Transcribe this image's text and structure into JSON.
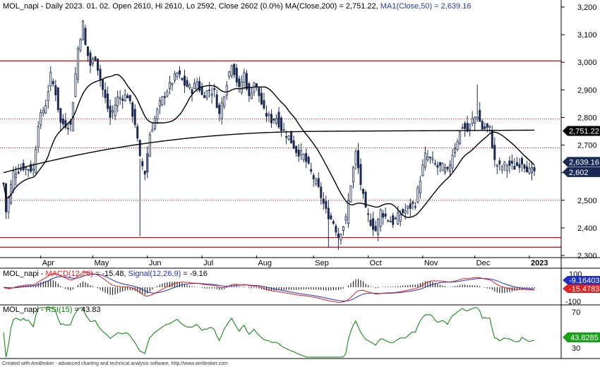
{
  "chart_data": [
    {
      "type": "candlestick",
      "title": "MOL_napi - Daily 2023. 01. 02. Open 2610, Hi 2610, Lo 2592, Close 2602 (0.0%) MA(Close,200) = 2,751.22, MA1(Close,50) = 2,639.16",
      "title_parts": {
        "prefix": "MOL_napi - Daily 2023. 01. 02. Open 2610, Hi 2610, Lo 2592, Close 2602 (0.0%) MA(Close,200) = 2,751.22, ",
        "ma50": "MA1(Close,50) = 2,639.16"
      },
      "ylim": [
        2300,
        3200
      ],
      "yticks": [
        "3,200",
        "3,100",
        "3,000",
        "2,900",
        "2,800",
        "2,700",
        "2,600",
        "2,500",
        "2,400",
        "2,300"
      ],
      "ytick_values": [
        3200,
        3100,
        3000,
        2900,
        2800,
        2700,
        2600,
        2500,
        2400,
        2300
      ],
      "x_labels": [
        "Apr",
        "May",
        "Jun",
        "Jul",
        "Aug",
        "Sep",
        "Oct",
        "Nov",
        "Dec",
        "2023"
      ],
      "x_label_days": [
        15,
        36,
        58,
        80,
        102,
        125,
        147,
        169,
        190,
        212
      ],
      "total_days": 215,
      "hlines_solid": [
        3005,
        2365,
        2330
      ],
      "hlines_dotted": [
        2795,
        2690,
        2500
      ],
      "anchors": [
        [
          0,
          2560
        ],
        [
          1,
          2460
        ],
        [
          4,
          2600
        ],
        [
          8,
          2620
        ],
        [
          12,
          2610
        ],
        [
          14,
          2780
        ],
        [
          17,
          2850
        ],
        [
          19,
          2950
        ],
        [
          21,
          2890
        ],
        [
          23,
          2780
        ],
        [
          27,
          2770
        ],
        [
          30,
          3050
        ],
        [
          32,
          3140
        ],
        [
          33,
          3060
        ],
        [
          35,
          2990
        ],
        [
          37,
          3020
        ],
        [
          40,
          2900
        ],
        [
          43,
          2800
        ],
        [
          46,
          2870
        ],
        [
          50,
          2880
        ],
        [
          53,
          2780
        ],
        [
          55,
          2650
        ],
        [
          57,
          2600
        ],
        [
          59,
          2740
        ],
        [
          63,
          2850
        ],
        [
          66,
          2900
        ],
        [
          70,
          2960
        ],
        [
          73,
          2920
        ],
        [
          76,
          2900
        ],
        [
          78,
          2930
        ],
        [
          80,
          2880
        ],
        [
          83,
          2900
        ],
        [
          85,
          2890
        ],
        [
          87,
          2810
        ],
        [
          90,
          2930
        ],
        [
          92,
          3000
        ],
        [
          95,
          2900
        ],
        [
          97,
          2960
        ],
        [
          99,
          2870
        ],
        [
          101,
          2930
        ],
        [
          103,
          2880
        ],
        [
          105,
          2820
        ],
        [
          108,
          2790
        ],
        [
          110,
          2800
        ],
        [
          112,
          2760
        ],
        [
          115,
          2730
        ],
        [
          118,
          2680
        ],
        [
          121,
          2660
        ],
        [
          124,
          2600
        ],
        [
          127,
          2540
        ],
        [
          130,
          2460
        ],
        [
          133,
          2420
        ],
        [
          135,
          2370
        ],
        [
          138,
          2430
        ],
        [
          140,
          2560
        ],
        [
          142,
          2670
        ],
        [
          144,
          2560
        ],
        [
          146,
          2460
        ],
        [
          148,
          2420
        ],
        [
          150,
          2390
        ],
        [
          152,
          2460
        ],
        [
          154,
          2440
        ],
        [
          157,
          2420
        ],
        [
          160,
          2450
        ],
        [
          163,
          2470
        ],
        [
          166,
          2490
        ],
        [
          168,
          2580
        ],
        [
          170,
          2660
        ],
        [
          172,
          2650
        ],
        [
          175,
          2620
        ],
        [
          177,
          2620
        ],
        [
          179,
          2600
        ],
        [
          181,
          2670
        ],
        [
          183,
          2720
        ],
        [
          185,
          2770
        ],
        [
          187,
          2750
        ],
        [
          189,
          2790
        ],
        [
          191,
          2810
        ],
        [
          193,
          2760
        ],
        [
          196,
          2760
        ],
        [
          198,
          2640
        ],
        [
          200,
          2620
        ],
        [
          203,
          2630
        ],
        [
          206,
          2620
        ],
        [
          209,
          2640
        ],
        [
          212,
          2605
        ]
      ],
      "ma200_value": "2,751.22",
      "ma50_value": "2,639.16",
      "last_close": "2,602",
      "colors": {
        "up": "#ffffff",
        "down": "#1a2a55",
        "ma": "#000000",
        "hline": "#cc0000",
        "tag_dark": "#1a2a55",
        "tag_black": "#000000"
      }
    },
    {
      "type": "line",
      "title": "MOL_napi - MACD(12,26) = -15.48, Signal(12,26,9) = -9.16",
      "title_parts": {
        "prefix": "MOL_napi - ",
        "macd": "MACD(12,26)",
        "macd_value": " = -15.48, ",
        "signal": "Signal(12,26,9)",
        "signal_value": " = -9.16"
      },
      "yticks": [
        "100",
        "-100"
      ],
      "signal_tag": "-9.16403",
      "macd_tag": "-15.4783",
      "colors": {
        "macd": "#e02020",
        "signal": "#2030c0",
        "hist": "#000000"
      }
    },
    {
      "type": "line",
      "title": "MOL_napi - RSI(15) = 43.83",
      "title_parts": {
        "prefix": "MOL_napi - ",
        "rsi": "RSI(15)",
        "rsi_value": " = 43.83"
      },
      "yticks": [
        "70",
        "30"
      ],
      "rsi_tag": "43.8285",
      "colors": {
        "rsi": "#008000",
        "tag": "#1aa01a"
      }
    }
  ],
  "footer": "Created with AmiBroker - advanced charting and technical analysis software. http://www.amibroker.com"
}
